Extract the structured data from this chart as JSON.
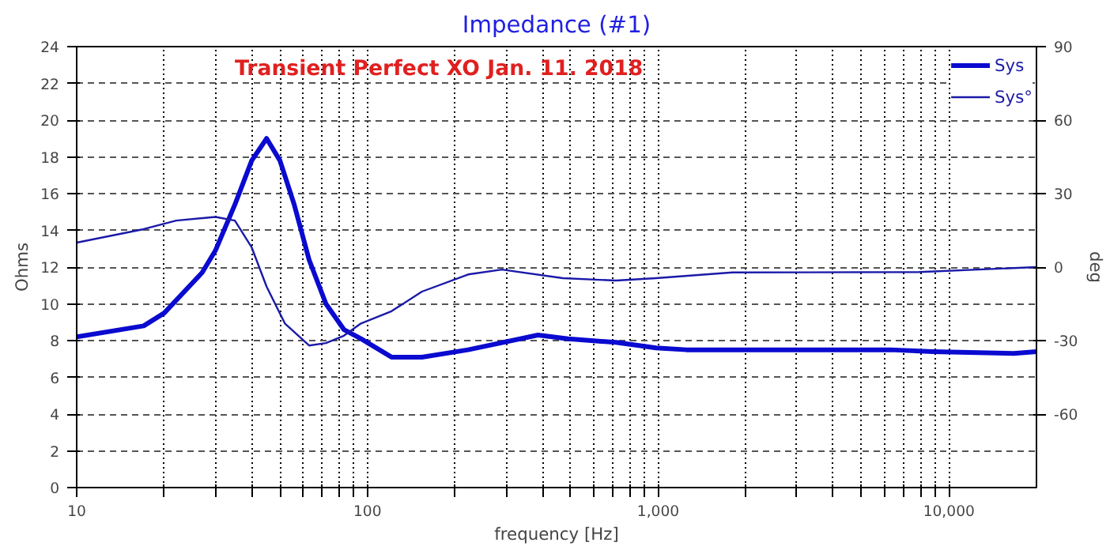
{
  "chart_data": {
    "type": "line",
    "title": "Impedance (#1)",
    "xlabel": "frequency [Hz]",
    "ylabel": "Ohms",
    "y2label": "deg",
    "annotations": [
      "Transient Perfect XO Jan. 11. 2018"
    ],
    "log": "x",
    "grid": true,
    "legend": "top right",
    "marker": "none",
    "line_style": "solid",
    "xlim": [
      10,
      20000
    ],
    "xticks": [
      10,
      {
        "value": 20,
        "label": null
      },
      {
        "value": 30,
        "label": null
      },
      {
        "value": 40,
        "label": null
      },
      {
        "value": 50,
        "label": null
      },
      {
        "value": 60,
        "label": null
      },
      {
        "value": 70,
        "label": null
      },
      {
        "value": 80,
        "label": null
      },
      {
        "value": 90,
        "label": null
      },
      100,
      {
        "value": 200,
        "label": null
      },
      {
        "value": 300,
        "label": null
      },
      {
        "value": 400,
        "label": null
      },
      {
        "value": 500,
        "label": null
      },
      {
        "value": 600,
        "label": null
      },
      {
        "value": 700,
        "label": null
      },
      {
        "value": 800,
        "label": null
      },
      {
        "value": 900,
        "label": null
      },
      {
        "value": 1000,
        "label": "1,000"
      },
      {
        "value": 2000,
        "label": null
      },
      {
        "value": 3000,
        "label": null
      },
      {
        "value": 4000,
        "label": null
      },
      {
        "value": 5000,
        "label": null
      },
      {
        "value": 6000,
        "label": null
      },
      {
        "value": 7000,
        "label": null
      },
      {
        "value": 8000,
        "label": null
      },
      {
        "value": 9000,
        "label": null
      },
      {
        "value": 10000,
        "label": "10,000"
      }
    ],
    "ylim": [
      0,
      24
    ],
    "yticks": [
      0,
      2,
      4,
      6,
      8,
      10,
      12,
      14,
      16,
      18,
      20,
      22,
      24
    ],
    "y2lim": [
      -90,
      90
    ],
    "y2ticks": [
      -60,
      -30,
      0,
      30,
      60,
      90
    ],
    "series": [
      {
        "name": "Sys",
        "color": "#0a0ad0",
        "x": [
          10,
          17,
          20,
          27,
          30,
          35,
          40,
          45,
          50,
          56,
          63,
          72,
          83,
          95,
          121,
          154,
          222,
          386,
          490,
          716,
          983,
          1250,
          6300,
          8800,
          16700,
          20000
        ],
        "values": [
          8.2,
          8.8,
          9.5,
          11.7,
          12.9,
          15.4,
          17.8,
          19.0,
          17.8,
          15.4,
          12.4,
          10.0,
          8.6,
          8.1,
          7.1,
          7.1,
          7.5,
          8.3,
          8.1,
          7.9,
          7.6,
          7.5,
          7.5,
          7.4,
          7.3,
          7.4
        ]
      },
      {
        "name": "Sys°",
        "color": "#1a1aa8",
        "axis": "y2",
        "x": [
          10,
          17,
          22,
          30,
          35,
          40,
          45,
          52,
          63,
          72,
          83,
          95,
          121,
          154,
          222,
          290,
          470,
          716,
          983,
          1800,
          7900,
          20000
        ],
        "values": [
          10,
          15.5,
          19,
          20.5,
          19,
          8,
          -8,
          -23,
          -32,
          -31,
          -28,
          -23,
          -18,
          -10,
          -3,
          -1,
          -4.5,
          -5.5,
          -4.5,
          -2.2,
          -2,
          0
        ]
      }
    ]
  }
}
